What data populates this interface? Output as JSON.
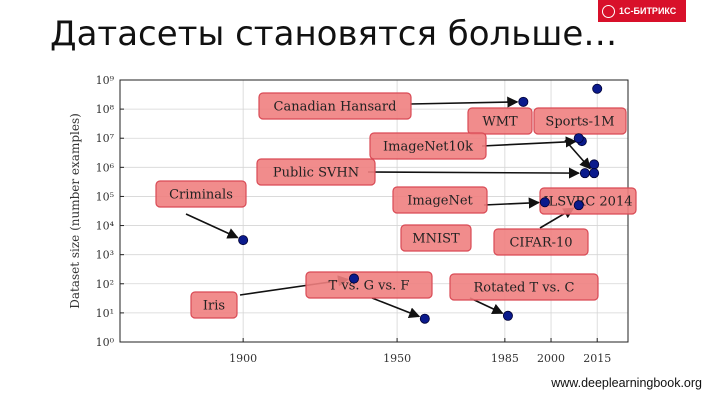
{
  "slide": {
    "title": "Датасеты становятся больше…",
    "brand": "1С-БИТРИКС",
    "footer": "www.deeplearningbook.org"
  },
  "colors": {
    "point": "#0a1a8c",
    "box_fill": "#f08080",
    "box_stroke": "#d94a55",
    "grid": "#d5d5d5"
  },
  "chart_data": {
    "type": "scatter",
    "title": "",
    "xlabel": "",
    "ylabel": "Dataset size (number examples)",
    "xlim": [
      1860,
      2025
    ],
    "ylim": [
      0,
      9
    ],
    "yscale": "log",
    "grid": true,
    "x_ticks": [
      1900,
      1950,
      1985,
      2000,
      2015
    ],
    "y_tick_labels": [
      "10⁰",
      "10¹",
      "10²",
      "10³",
      "10⁴",
      "10⁵",
      "10⁶",
      "10⁷",
      "10⁸",
      "10⁹"
    ],
    "points": [
      {
        "name": "Criminals",
        "x": 1900,
        "y": 3.5
      },
      {
        "name": "Iris",
        "x": 1936,
        "y": 2.18
      },
      {
        "name": "T vs. G vs. F",
        "x": 1959,
        "y": 0.8
      },
      {
        "name": "Rotated T vs. C",
        "x": 1986,
        "y": 0.9
      },
      {
        "name": "MNIST",
        "x": 1998,
        "y": 4.8
      },
      {
        "name": "Canadian Hansard",
        "x": 1991,
        "y": 8.25
      },
      {
        "name": "Public SVHN",
        "x": 2011,
        "y": 5.8
      },
      {
        "name": "ImageNet10k",
        "x": 2010,
        "y": 6.9
      },
      {
        "name": "ImageNet",
        "x": 2009,
        "y": 7.0
      },
      {
        "name": "WMT",
        "x": 2014,
        "y": 6.1
      },
      {
        "name": "Sports-1M",
        "x": 2015,
        "y": 8.7
      },
      {
        "name": "ILSVRC 2014",
        "x": 2014,
        "y": 5.8
      },
      {
        "name": "CIFAR-10",
        "x": 2009,
        "y": 4.7
      }
    ],
    "annotations": [
      {
        "label": "Canadian Hansard"
      },
      {
        "label": "WMT"
      },
      {
        "label": "Sports-1M"
      },
      {
        "label": "ImageNet10k"
      },
      {
        "label": "Public SVHN"
      },
      {
        "label": "Criminals"
      },
      {
        "label": "ImageNet"
      },
      {
        "label": "ILSVRC 2014"
      },
      {
        "label": "MNIST"
      },
      {
        "label": "CIFAR-10"
      },
      {
        "label": "T vs. G vs. F"
      },
      {
        "label": "Rotated T vs. C"
      },
      {
        "label": "Iris"
      }
    ]
  }
}
